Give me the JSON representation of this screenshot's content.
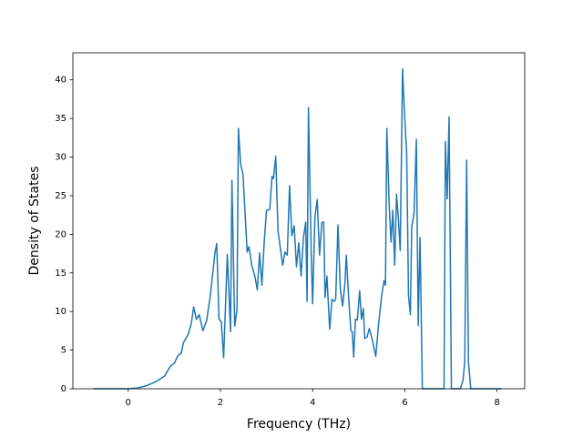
{
  "chart_data": {
    "type": "line",
    "x_label": "Frequency (THz)",
    "y_label": "Density of States",
    "color": "#1f77b4",
    "xlim": [
      -1.2,
      8.6
    ],
    "ylim": [
      0,
      43.5
    ],
    "xticks": [
      0,
      2,
      4,
      6,
      8
    ],
    "yticks": [
      0,
      5,
      10,
      15,
      20,
      25,
      30,
      35,
      40
    ],
    "x": [
      -0.75,
      0,
      0.2,
      0.4,
      0.6,
      0.8,
      0.85,
      0.93,
      1.0,
      1.08,
      1.15,
      1.2,
      1.3,
      1.37,
      1.42,
      1.48,
      1.54,
      1.62,
      1.7,
      1.78,
      1.88,
      1.92,
      1.97,
      2.02,
      2.07,
      2.15,
      2.22,
      2.25,
      2.31,
      2.36,
      2.39,
      2.44,
      2.49,
      2.58,
      2.62,
      2.68,
      2.75,
      2.8,
      2.85,
      2.9,
      2.95,
      3.0,
      3.07,
      3.12,
      3.15,
      3.2,
      3.25,
      3.35,
      3.4,
      3.45,
      3.5,
      3.55,
      3.6,
      3.65,
      3.7,
      3.75,
      3.8,
      3.85,
      3.88,
      3.91,
      3.97,
      4.0,
      4.05,
      4.1,
      4.15,
      4.2,
      4.24,
      4.27,
      4.31,
      4.37,
      4.42,
      4.47,
      4.5,
      4.55,
      4.6,
      4.65,
      4.7,
      4.73,
      4.78,
      4.83,
      4.86,
      4.89,
      4.93,
      4.97,
      5.02,
      5.06,
      5.1,
      5.13,
      5.18,
      5.23,
      5.3,
      5.37,
      5.43,
      5.5,
      5.55,
      5.58,
      5.61,
      5.66,
      5.7,
      5.74,
      5.78,
      5.82,
      5.86,
      5.9,
      5.95,
      5.99,
      6.04,
      6.08,
      6.12,
      6.15,
      6.2,
      6.25,
      6.29,
      6.33,
      6.38,
      6.85,
      6.88,
      6.92,
      6.96,
      7.01,
      7.2,
      7.26,
      7.3,
      7.34,
      7.38,
      7.43,
      8.1
    ],
    "values": [
      0,
      0,
      0.1,
      0.4,
      0.9,
      1.7,
      2.3,
      3.0,
      3.3,
      4.3,
      4.6,
      6.0,
      7.0,
      8.5,
      10.6,
      9.0,
      9.6,
      7.5,
      8.8,
      12.0,
      17.5,
      18.8,
      9.0,
      8.7,
      4.0,
      17.4,
      7.4,
      27.0,
      8.1,
      10.3,
      33.7,
      29.0,
      27.8,
      17.7,
      18.4,
      16.0,
      14.5,
      12.8,
      17.6,
      13.4,
      19.0,
      23.1,
      23.2,
      27.5,
      27.2,
      30.1,
      20.4,
      16.0,
      17.7,
      17.3,
      26.3,
      19.8,
      21.1,
      15.8,
      18.9,
      14.6,
      19.5,
      21.6,
      11.3,
      36.4,
      17.5,
      11.0,
      22.2,
      24.5,
      17.3,
      21.5,
      21.6,
      11.8,
      14.6,
      7.7,
      11.6,
      11.3,
      11.6,
      21.2,
      13.0,
      10.7,
      13.6,
      17.3,
      12.0,
      7.5,
      7.4,
      4.1,
      9.0,
      8.9,
      12.7,
      9.0,
      10.4,
      6.5,
      6.7,
      7.8,
      6.2,
      4.2,
      8.3,
      12.2,
      14.0,
      13.4,
      33.7,
      24.0,
      19.0,
      23.1,
      16.0,
      25.2,
      22.0,
      17.9,
      41.4,
      36.0,
      30.5,
      12.0,
      9.6,
      21.0,
      22.7,
      32.3,
      8.2,
      19.6,
      0,
      0,
      32.0,
      24.6,
      35.2,
      0,
      0,
      1.0,
      3.5,
      29.6,
      3.5,
      0,
      0
    ]
  }
}
